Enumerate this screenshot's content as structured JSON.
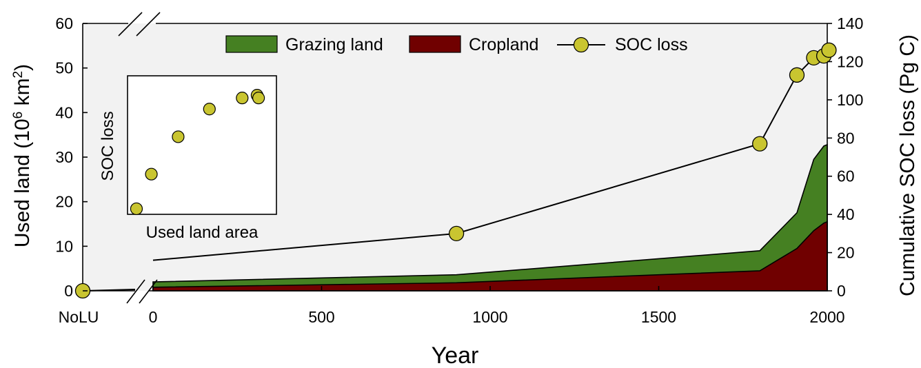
{
  "chart_data": {
    "type": "area",
    "xlabel": "Year",
    "ylabel_left_prefix": "Used land (10",
    "ylabel_left_sup1": "6",
    "ylabel_left_mid": " km",
    "ylabel_left_sup2": "2",
    "ylabel_left_suffix": ")",
    "ylabel_right": "Cumulative SOC loss (Pg C)",
    "nolu_label": "NoLU",
    "x_ticks": [
      "0",
      "500",
      "1000",
      "1500",
      "2000"
    ],
    "x_tick_values": [
      0,
      500,
      1000,
      1500,
      2000
    ],
    "xlim": [
      0,
      2000
    ],
    "y_left_ticks": [
      "0",
      "10",
      "20",
      "30",
      "40",
      "50",
      "60"
    ],
    "y_left_tick_values": [
      0,
      10,
      20,
      30,
      40,
      50,
      60
    ],
    "ylim_left": [
      0,
      60
    ],
    "y_right_ticks": [
      "0",
      "20",
      "40",
      "60",
      "80",
      "100",
      "120",
      "140"
    ],
    "y_right_tick_values": [
      0,
      20,
      40,
      60,
      80,
      100,
      120,
      140
    ],
    "ylim_right": [
      0,
      140
    ],
    "x": [
      0,
      900,
      1800,
      1910,
      1960,
      1990,
      2000
    ],
    "series": [
      {
        "name": "Cropland",
        "axis": "left",
        "kind": "area",
        "color": "#700000",
        "values": [
          0.8,
          1.8,
          4.5,
          9.5,
          13.5,
          15.2,
          15.5
        ]
      },
      {
        "name": "Grazing land",
        "axis": "left",
        "kind": "area-stacked",
        "color": "#458022",
        "values": [
          2.0,
          3.6,
          9.0,
          17.5,
          29.5,
          32.5,
          32.8
        ]
      },
      {
        "name": "SOC loss",
        "axis": "right",
        "kind": "line-markers",
        "color": "#c9c530",
        "x": [
          1800,
          1910,
          1960,
          1990,
          2005
        ],
        "values": [
          77,
          113,
          122,
          123,
          126
        ]
      }
    ],
    "soc_early_line": {
      "x": [
        0,
        900,
        1800
      ],
      "values": [
        16,
        30,
        77
      ]
    },
    "soc_nolu_value": 0,
    "nolu_grazing_level": 0.3,
    "legend_position": "top",
    "legend": [
      "Grazing land",
      "Cropland",
      "SOC loss"
    ],
    "inset": {
      "xlabel": "Used land area",
      "ylabel": "SOC loss",
      "points": [
        [
          0.06,
          0.04
        ],
        [
          0.16,
          0.29
        ],
        [
          0.34,
          0.56
        ],
        [
          0.55,
          0.76
        ],
        [
          0.77,
          0.84
        ],
        [
          0.87,
          0.86
        ],
        [
          0.88,
          0.84
        ]
      ]
    },
    "colors": {
      "background": "#f2f2f2",
      "grazing": "#458022",
      "cropland": "#700000",
      "marker": "#c9c530"
    }
  }
}
